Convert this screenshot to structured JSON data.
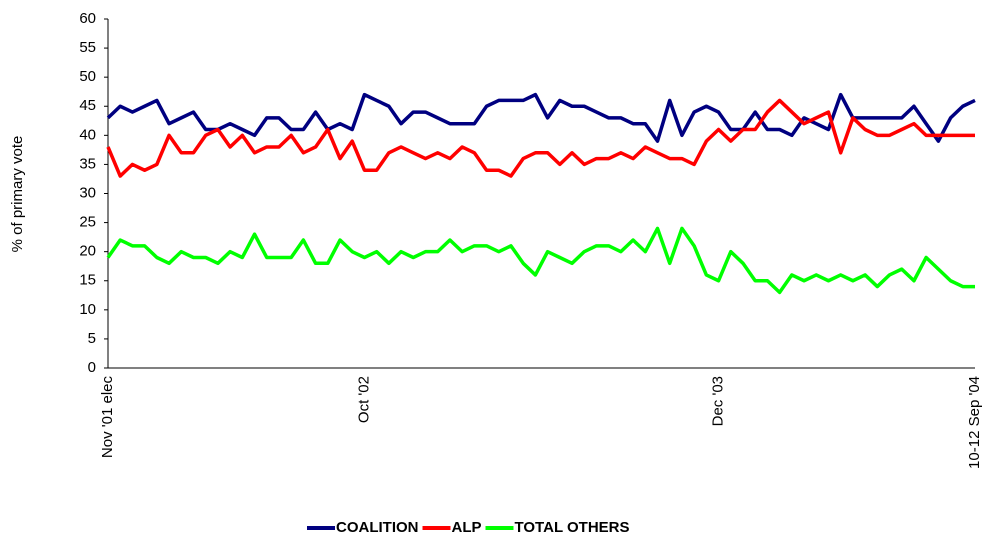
{
  "chart_data": {
    "type": "line",
    "y_label": "% of primary vote",
    "categories": [
      "Nov '01 elec",
      null,
      null,
      null,
      null,
      null,
      null,
      null,
      null,
      null,
      null,
      null,
      null,
      null,
      null,
      null,
      null,
      null,
      null,
      null,
      null,
      "Oct '02",
      null,
      null,
      null,
      null,
      null,
      null,
      null,
      null,
      null,
      null,
      null,
      null,
      null,
      null,
      null,
      null,
      null,
      null,
      null,
      null,
      null,
      null,
      null,
      null,
      null,
      null,
      null,
      null,
      "Dec '03",
      null,
      null,
      null,
      null,
      null,
      null,
      null,
      null,
      null,
      null,
      null,
      null,
      null,
      null,
      null,
      null,
      null,
      null,
      null,
      null,
      "10-12 Sep '04"
    ],
    "series": [
      {
        "name": "COALITION",
        "color": "#000080",
        "values": [
          43,
          45,
          44,
          45,
          46,
          42,
          43,
          44,
          41,
          41,
          42,
          41,
          40,
          43,
          43,
          41,
          41,
          44,
          41,
          42,
          41,
          47,
          46,
          45,
          42,
          44,
          44,
          43,
          42,
          42,
          42,
          45,
          46,
          46,
          46,
          47,
          43,
          46,
          45,
          45,
          44,
          43,
          43,
          42,
          42,
          39,
          46,
          40,
          44,
          45,
          44,
          41,
          41,
          44,
          41,
          41,
          40,
          43,
          42,
          41,
          47,
          43,
          43,
          43,
          43,
          43,
          45,
          42,
          39,
          43,
          45,
          46
        ]
      },
      {
        "name": "ALP",
        "color": "#ff0000",
        "values": [
          38,
          33,
          35,
          34,
          35,
          40,
          37,
          37,
          40,
          41,
          38,
          40,
          37,
          38,
          38,
          40,
          37,
          38,
          41,
          36,
          39,
          34,
          34,
          37,
          38,
          37,
          36,
          37,
          36,
          38,
          37,
          34,
          34,
          33,
          36,
          37,
          37,
          35,
          37,
          35,
          36,
          36,
          37,
          36,
          38,
          37,
          36,
          36,
          35,
          39,
          41,
          39,
          41,
          41,
          44,
          46,
          44,
          42,
          43,
          44,
          37,
          43,
          41,
          40,
          40,
          41,
          42,
          40,
          40,
          40,
          40,
          40
        ]
      },
      {
        "name": "TOTAL OTHERS",
        "color": "#00ff00",
        "values": [
          19,
          22,
          21,
          21,
          19,
          18,
          20,
          19,
          19,
          18,
          20,
          19,
          23,
          19,
          19,
          19,
          22,
          18,
          18,
          22,
          20,
          19,
          20,
          18,
          20,
          19,
          20,
          20,
          22,
          20,
          21,
          21,
          20,
          21,
          18,
          16,
          20,
          19,
          18,
          20,
          21,
          21,
          20,
          22,
          20,
          24,
          18,
          24,
          21,
          16,
          15,
          20,
          18,
          15,
          15,
          13,
          16,
          15,
          16,
          15,
          16,
          15,
          16,
          14,
          16,
          17,
          15,
          19,
          17,
          15,
          14,
          14
        ]
      }
    ],
    "ylim": [
      0,
      60
    ],
    "yticks": [
      0,
      5,
      10,
      15,
      20,
      25,
      30,
      35,
      40,
      45,
      50,
      55,
      60
    ],
    "grid": false
  }
}
